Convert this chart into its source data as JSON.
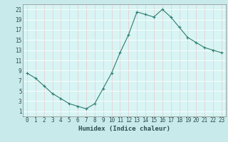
{
  "title": "",
  "xlabel": "Humidex (Indice chaleur)",
  "ylabel": "",
  "x": [
    0,
    1,
    2,
    3,
    4,
    5,
    6,
    7,
    8,
    9,
    10,
    11,
    12,
    13,
    14,
    15,
    16,
    17,
    18,
    19,
    20,
    21,
    22,
    23
  ],
  "y": [
    8.5,
    7.5,
    6.0,
    4.5,
    3.5,
    2.5,
    2.0,
    1.5,
    2.5,
    5.5,
    8.5,
    12.5,
    16.0,
    20.5,
    20.0,
    19.5,
    21.0,
    19.5,
    17.5,
    15.5,
    14.5,
    13.5,
    13.0,
    12.5
  ],
  "line_color": "#2e7d6e",
  "marker": "+",
  "marker_size": 3,
  "marker_lw": 0.8,
  "line_width": 0.8,
  "bg_color": "#c8eaea",
  "plot_bg_color": "#d8f4f4",
  "grid_white_color": "#ffffff",
  "grid_pink_color": "#e8c8c8",
  "xlim": [
    -0.5,
    23.5
  ],
  "ylim": [
    0,
    22
  ],
  "yticks": [
    1,
    3,
    5,
    7,
    9,
    11,
    13,
    15,
    17,
    19,
    21
  ],
  "xticks": [
    0,
    1,
    2,
    3,
    4,
    5,
    6,
    7,
    8,
    9,
    10,
    11,
    12,
    13,
    14,
    15,
    16,
    17,
    18,
    19,
    20,
    21,
    22,
    23
  ],
  "tick_fontsize": 5.5,
  "xlabel_fontsize": 6.5,
  "tick_color": "#2e4e4e",
  "spine_color": "#888888"
}
